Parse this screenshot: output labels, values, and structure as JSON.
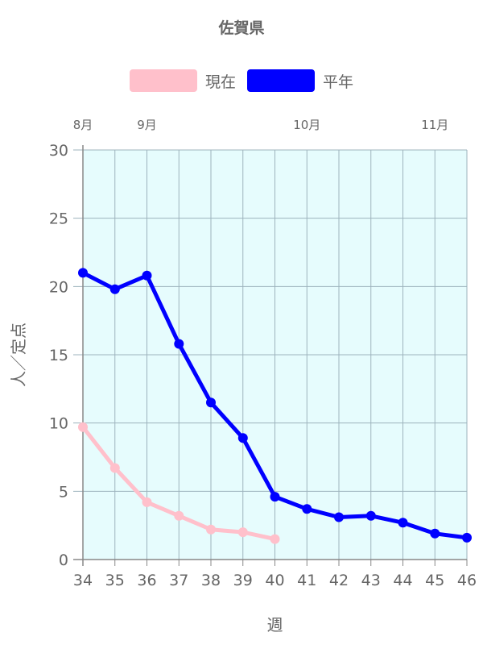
{
  "chart_data": {
    "type": "line",
    "title": "佐賀県",
    "xlabel": "週",
    "ylabel": "人／定点",
    "x": [
      34,
      35,
      36,
      37,
      38,
      39,
      40,
      41,
      42,
      43,
      44,
      45,
      46
    ],
    "xlim": [
      34,
      46
    ],
    "ylim": [
      0,
      30
    ],
    "yticks": [
      0,
      5,
      10,
      15,
      20,
      25,
      30
    ],
    "grid": true,
    "plot_background": "#e6fcfd",
    "legend_position": "top",
    "month_labels": [
      {
        "label": "8月",
        "week": 34
      },
      {
        "label": "9月",
        "week": 36
      },
      {
        "label": "10月",
        "week": 41
      },
      {
        "label": "11月",
        "week": 45
      }
    ],
    "series": [
      {
        "name": "現在",
        "color": "#ffc0cb",
        "values": [
          9.7,
          6.7,
          4.2,
          3.2,
          2.2,
          2.0,
          1.5,
          null,
          null,
          null,
          null,
          null,
          null
        ]
      },
      {
        "name": "平年",
        "color": "#0000ff",
        "values": [
          21.0,
          19.8,
          20.8,
          15.8,
          11.5,
          8.9,
          4.6,
          3.7,
          3.1,
          3.2,
          2.7,
          1.9,
          1.6
        ]
      }
    ]
  }
}
